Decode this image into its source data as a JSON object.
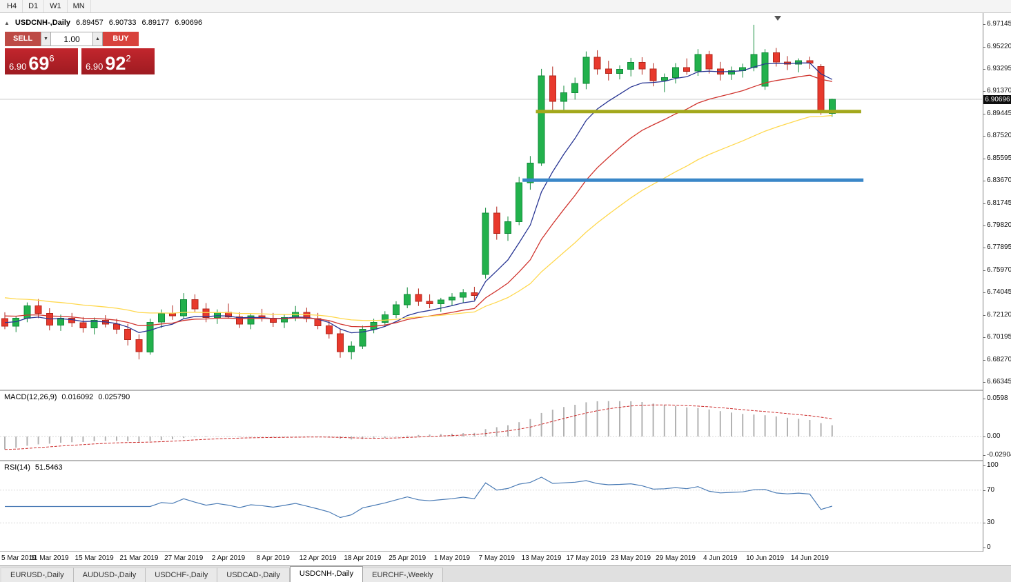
{
  "colors": {
    "bull": "#22b14c",
    "bull_border": "#118a3a",
    "bear": "#e8392d",
    "bear_border": "#b2261c",
    "sell_button": "#bd4a45",
    "buy_button": "#d8423c",
    "quote_box_top": "#c2262d",
    "quote_box_bottom": "#9e1b21",
    "macd_hist": "#b2b2b2",
    "macd_signal": "#cc2a2a",
    "rsi_line": "#4a7bb5"
  },
  "toolbar": {
    "timeframes": [
      "H4",
      "D1",
      "W1",
      "MN"
    ]
  },
  "chart_header": {
    "collapse_icon": "▲",
    "symbol": "USDCNH-,Daily",
    "open": "6.89457",
    "high": "6.90733",
    "low": "6.89177",
    "close": "6.90696"
  },
  "trade_panel": {
    "sell_label": "SELL",
    "buy_label": "BUY",
    "lot_value": "1.00",
    "down_icon": "▼",
    "up_icon": "▲",
    "sell_price": {
      "prefix": "6.90",
      "pips": "69",
      "point": "6"
    },
    "buy_price": {
      "prefix": "6.90",
      "pips": "92",
      "point": "2"
    }
  },
  "price_axis": {
    "current": "6.90696",
    "ticks": [
      "6.97145",
      "6.95220",
      "6.93295",
      "6.91370",
      "6.89445",
      "6.87520",
      "6.85595",
      "6.83670",
      "6.81745",
      "6.79820",
      "6.77895",
      "6.75970",
      "6.74045",
      "6.72120",
      "6.70195",
      "6.68270",
      "6.66345"
    ]
  },
  "macd": {
    "label": "MACD(12,26,9)",
    "value_main": "0.016092",
    "value_signal": "0.025790",
    "fast": 12,
    "slow": 26,
    "signal": 9,
    "scale_max": 0.0718,
    "scale_min": -0.037,
    "ticks": [
      {
        "label": "0.0598",
        "value": 0.0598
      },
      {
        "label": "0.00",
        "value": 0
      },
      {
        "label": "-0.029049",
        "value": -0.029049
      }
    ]
  },
  "rsi": {
    "label": "RSI(14)",
    "value": "51.5463",
    "period": 14,
    "levels": [
      70,
      30
    ],
    "ticks": [
      {
        "label": "100",
        "value": 100
      },
      {
        "label": "70",
        "value": 70
      },
      {
        "label": "30",
        "value": 30
      },
      {
        "label": "0",
        "value": 0
      }
    ]
  },
  "date_axis": {
    "labels": [
      "5 Mar 2019",
      "11 Mar 2019",
      "15 Mar 2019",
      "21 Mar 2019",
      "27 Mar 2019",
      "2 Apr 2019",
      "8 Apr 2019",
      "12 Apr 2019",
      "18 Apr 2019",
      "25 Apr 2019",
      "1 May 2019",
      "7 May 2019",
      "13 May 2019",
      "17 May 2019",
      "23 May 2019",
      "29 May 2019",
      "4 Jun 2019",
      "10 Jun 2019",
      "14 Jun 2019"
    ]
  },
  "tabs": [
    {
      "label": "EURUSD-,Daily",
      "active": false
    },
    {
      "label": "AUDUSD-,Daily",
      "active": false
    },
    {
      "label": "USDCHF-,Daily",
      "active": false
    },
    {
      "label": "USDCAD-,Daily",
      "active": false
    },
    {
      "label": "USDCNH-,Daily",
      "active": true
    },
    {
      "label": "EURCHF-,Weekly",
      "active": false
    }
  ],
  "chart_data": {
    "type": "candlestick",
    "symbol": "USDCNH",
    "timeframe": "Daily",
    "y_axis": {
      "min": 6.657,
      "max": 6.981,
      "tick_step": 0.01925
    },
    "dates": [
      "5 Mar",
      "6 Mar",
      "7 Mar",
      "8 Mar",
      "11 Mar",
      "12 Mar",
      "13 Mar",
      "14 Mar",
      "15 Mar",
      "18 Mar",
      "19 Mar",
      "20 Mar",
      "21 Mar",
      "22 Mar",
      "25 Mar",
      "26 Mar",
      "27 Mar",
      "28 Mar",
      "29 Mar",
      "1 Apr",
      "2 Apr",
      "3 Apr",
      "4 Apr",
      "5 Apr",
      "8 Apr",
      "9 Apr",
      "10 Apr",
      "11 Apr",
      "12 Apr",
      "15 Apr",
      "16 Apr",
      "17 Apr",
      "18 Apr",
      "22 Apr",
      "23 Apr",
      "24 Apr",
      "25 Apr",
      "26 Apr",
      "29 Apr",
      "30 Apr",
      "1 May",
      "2 May",
      "3 May",
      "6 May",
      "7 May",
      "8 May",
      "9 May",
      "10 May",
      "13 May",
      "14 May",
      "15 May",
      "16 May",
      "17 May",
      "20 May",
      "21 May",
      "22 May",
      "23 May",
      "24 May",
      "27 May",
      "28 May",
      "29 May",
      "30 May",
      "31 May",
      "3 Jun",
      "4 Jun",
      "5 Jun",
      "6 Jun",
      "7 Jun",
      "10 Jun",
      "11 Jun",
      "12 Jun",
      "13 Jun",
      "14 Jun",
      "17 Jun",
      "18 Jun"
    ],
    "open": [
      6.718,
      6.7115,
      6.7185,
      6.729,
      6.7225,
      6.7125,
      6.7185,
      6.7145,
      6.71,
      6.7165,
      6.7135,
      6.709,
      6.7,
      6.6895,
      6.715,
      6.7225,
      6.7205,
      6.7345,
      6.7265,
      6.719,
      6.7235,
      6.7195,
      6.7135,
      6.7205,
      6.7185,
      6.715,
      6.719,
      6.7235,
      6.718,
      6.712,
      6.705,
      6.6895,
      6.6945,
      6.709,
      6.715,
      6.7215,
      6.73,
      6.739,
      6.733,
      6.731,
      6.734,
      6.7365,
      6.7405,
      6.756,
      6.809,
      6.7915,
      6.8015,
      6.835,
      6.852,
      6.927,
      6.905,
      6.9125,
      6.9205,
      6.943,
      6.933,
      6.929,
      6.9325,
      6.9385,
      6.933,
      6.923,
      6.9255,
      6.934,
      6.931,
      6.9455,
      6.933,
      6.9285,
      6.9315,
      6.934,
      6.918,
      6.947,
      6.939,
      6.937,
      6.94,
      6.935,
      6.89457
    ],
    "high": [
      6.7235,
      6.7205,
      6.732,
      6.735,
      6.727,
      6.7215,
      6.723,
      6.7195,
      6.719,
      6.721,
      6.718,
      6.7135,
      6.7045,
      6.718,
      6.726,
      6.7295,
      6.74,
      6.739,
      6.7315,
      6.726,
      6.731,
      6.7235,
      6.7225,
      6.7265,
      6.723,
      6.7215,
      6.729,
      6.7275,
      6.723,
      6.7165,
      6.709,
      6.6985,
      6.712,
      6.718,
      6.7245,
      6.733,
      6.745,
      6.744,
      6.739,
      6.736,
      6.74,
      6.7435,
      6.7455,
      6.8135,
      6.8145,
      6.806,
      6.84,
      6.858,
      6.933,
      6.935,
      6.9185,
      6.9255,
      6.948,
      6.949,
      6.94,
      6.936,
      6.9425,
      6.943,
      6.938,
      6.929,
      6.938,
      6.942,
      6.95,
      6.9485,
      6.939,
      6.935,
      6.9375,
      6.971,
      6.95,
      6.951,
      6.944,
      6.942,
      6.9435,
      6.937,
      6.90733
    ],
    "low": [
      6.709,
      6.7065,
      6.715,
      6.7185,
      6.708,
      6.7075,
      6.711,
      6.706,
      6.7045,
      6.7105,
      6.705,
      6.695,
      6.683,
      6.687,
      6.71,
      6.717,
      6.718,
      6.7235,
      6.715,
      6.7135,
      6.718,
      6.71,
      6.709,
      6.7155,
      6.711,
      6.71,
      6.716,
      6.715,
      6.709,
      6.701,
      6.6845,
      6.683,
      6.692,
      6.7055,
      6.711,
      6.7185,
      6.727,
      6.729,
      6.727,
      6.724,
      6.729,
      6.7315,
      6.734,
      6.7525,
      6.786,
      6.785,
      6.7985,
      6.829,
      6.8495,
      6.8975,
      6.895,
      6.9065,
      6.9155,
      6.928,
      6.923,
      6.924,
      6.9265,
      6.928,
      6.918,
      6.913,
      6.9205,
      6.928,
      6.927,
      6.929,
      6.923,
      6.9235,
      6.9255,
      6.931,
      6.915,
      6.935,
      6.932,
      6.93,
      6.933,
      6.8935,
      6.89177
    ],
    "close": [
      6.7115,
      6.7185,
      6.729,
      6.7225,
      6.7125,
      6.7185,
      6.7145,
      6.71,
      6.7165,
      6.7135,
      6.709,
      6.7,
      6.6895,
      6.715,
      6.7225,
      6.7205,
      6.7345,
      6.7265,
      6.719,
      6.7235,
      6.7195,
      6.7135,
      6.7205,
      6.7185,
      6.715,
      6.719,
      6.7235,
      6.718,
      6.712,
      6.705,
      6.6895,
      6.6945,
      6.709,
      6.715,
      6.7215,
      6.73,
      6.739,
      6.733,
      6.731,
      6.734,
      6.7365,
      6.7405,
      6.738,
      6.809,
      6.7915,
      6.8015,
      6.835,
      6.852,
      6.927,
      6.905,
      6.9125,
      6.9205,
      6.943,
      6.933,
      6.929,
      6.9325,
      6.9385,
      6.933,
      6.923,
      6.9255,
      6.934,
      6.931,
      6.9455,
      6.933,
      6.9285,
      6.9315,
      6.934,
      6.9455,
      6.947,
      6.939,
      6.937,
      6.94,
      6.938,
      6.896,
      6.90696
    ],
    "moving_averages": [
      {
        "name": "ma-fast-navy-line",
        "period": 8,
        "seed_offset": 0.004,
        "color": "#283593"
      },
      {
        "name": "ma-mid-red-line",
        "period": 17,
        "seed_offset": 0.01,
        "color": "#d0342e"
      },
      {
        "name": "ma-slow-yellow-line",
        "period": 34,
        "seed_offset": 0.026,
        "color": "#ffd84d"
      }
    ],
    "levels": [
      {
        "name": "support-line-olive",
        "price": 6.8963,
        "from_bar": 47.5,
        "to_bar": 76.6,
        "color": "#a3a81c",
        "width": 5
      },
      {
        "name": "support-line-blue",
        "price": 6.8372,
        "from_bar": 46.3,
        "to_bar": 76.8,
        "color": "#3a87c8",
        "width": 5
      }
    ]
  }
}
